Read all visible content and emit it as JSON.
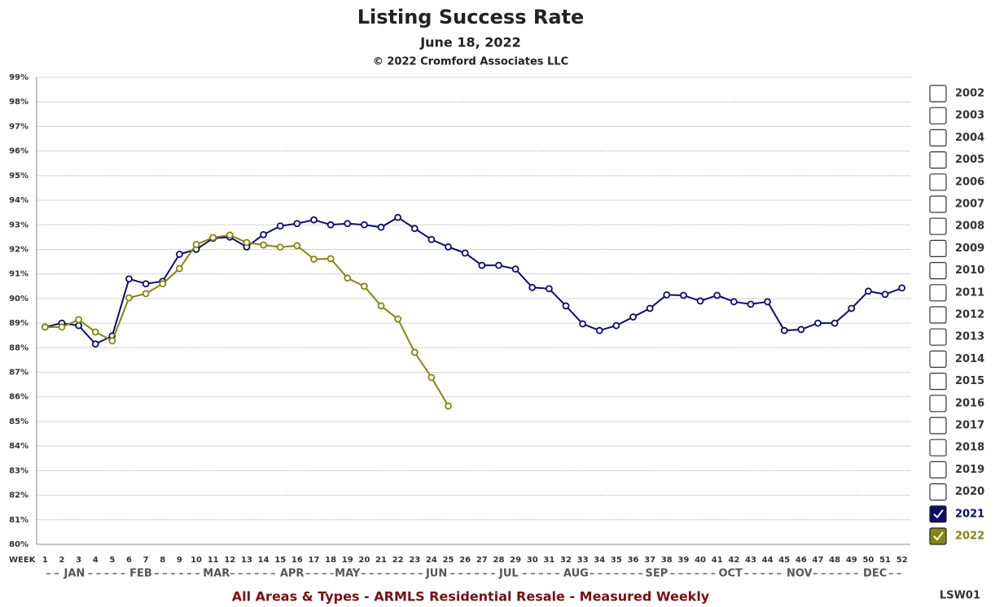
{
  "chart_data": {
    "type": "line",
    "title": "Listing Success Rate",
    "subtitle": "June 18, 2022",
    "copyright": "© 2022 Cromford Associates LLC",
    "xlabel": "WEEK",
    "footer": "All Areas & Types - ARMLS Residential Resale - Measured Weekly",
    "code": "LSW01",
    "months": [
      "JAN",
      "FEB",
      "MAR",
      "APR",
      "MAY",
      "JUN",
      "JUL",
      "AUG",
      "SEP",
      "OCT",
      "NOV",
      "DEC"
    ],
    "x": [
      1,
      2,
      3,
      4,
      5,
      6,
      7,
      8,
      9,
      10,
      11,
      12,
      13,
      14,
      15,
      16,
      17,
      18,
      19,
      20,
      21,
      22,
      23,
      24,
      25,
      26,
      27,
      28,
      29,
      30,
      31,
      32,
      33,
      34,
      35,
      36,
      37,
      38,
      39,
      40,
      41,
      42,
      43,
      44,
      45,
      46,
      47,
      48,
      49,
      50,
      51,
      52
    ],
    "xlim": [
      0.5,
      52.5
    ],
    "ylim": [
      80,
      99
    ],
    "yticks": [
      {
        "value": 80,
        "label": "80%"
      },
      {
        "value": 81,
        "label": "81%"
      },
      {
        "value": 82,
        "label": "82%"
      },
      {
        "value": 83,
        "label": "83%"
      },
      {
        "value": 84,
        "label": "84%"
      },
      {
        "value": 85,
        "label": "85%"
      },
      {
        "value": 86,
        "label": "86%"
      },
      {
        "value": 87,
        "label": "87%"
      },
      {
        "value": 88,
        "label": "88%"
      },
      {
        "value": 89,
        "label": "89%"
      },
      {
        "value": 90,
        "label": "90%"
      },
      {
        "value": 91,
        "label": "91%"
      },
      {
        "value": 92,
        "label": "92%"
      },
      {
        "value": 93,
        "label": "93%"
      },
      {
        "value": 94,
        "label": "94%"
      },
      {
        "value": 95,
        "label": "95%"
      },
      {
        "value": 96,
        "label": "96%"
      },
      {
        "value": 97,
        "label": "97%"
      },
      {
        "value": 98,
        "label": "98%"
      },
      {
        "value": 99,
        "label": "99%"
      }
    ],
    "grid": true,
    "unselected_years": [
      "2002",
      "2003",
      "2004",
      "2005",
      "2006",
      "2007",
      "2008",
      "2009",
      "2010",
      "2011",
      "2012",
      "2013",
      "2014",
      "2015",
      "2016",
      "2017",
      "2018",
      "2019",
      "2020"
    ],
    "series": [
      {
        "name": "2021",
        "color": "#0d0d6b",
        "values": [
          88.84,
          89.0,
          88.9,
          88.15,
          88.48,
          90.8,
          90.6,
          90.7,
          91.8,
          92.0,
          92.45,
          92.5,
          92.1,
          92.6,
          92.95,
          93.05,
          93.2,
          93.0,
          93.05,
          93.0,
          92.9,
          93.3,
          92.85,
          92.4,
          92.1,
          91.85,
          91.35,
          91.35,
          91.2,
          90.45,
          90.4,
          89.7,
          88.97,
          88.7,
          88.9,
          89.25,
          89.6,
          90.15,
          90.13,
          89.9,
          90.13,
          89.87,
          89.77,
          89.87,
          88.7,
          88.74,
          89.0,
          89.0,
          89.6,
          90.3,
          90.17,
          90.43
        ]
      },
      {
        "name": "2022",
        "color": "#858512",
        "values": [
          88.84,
          88.84,
          89.14,
          88.64,
          88.28,
          90.03,
          90.2,
          90.6,
          91.22,
          92.2,
          92.48,
          92.58,
          92.28,
          92.18,
          92.09,
          92.15,
          91.6,
          91.62,
          90.83,
          90.5,
          89.7,
          89.17,
          87.81,
          86.79,
          85.63,
          null,
          null,
          null,
          null,
          null,
          null,
          null,
          null,
          null,
          null,
          null,
          null,
          null,
          null,
          null,
          null,
          null,
          null,
          null,
          null,
          null,
          null,
          null,
          null,
          null,
          null,
          null
        ]
      }
    ]
  }
}
